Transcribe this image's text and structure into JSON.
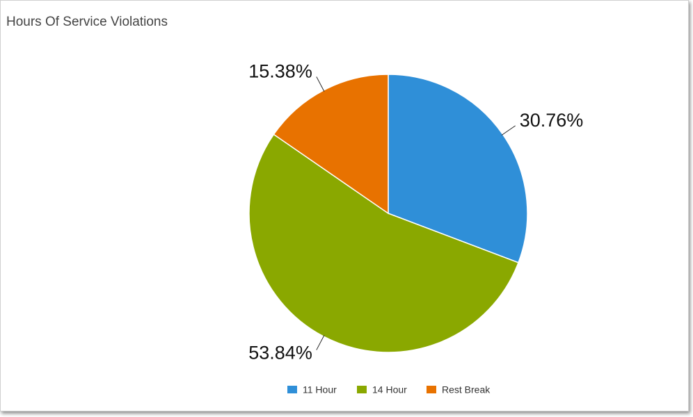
{
  "chart_data": {
    "type": "pie",
    "title": "Hours Of Service Violations",
    "categories": [
      "11 Hour",
      "14 Hour",
      "Rest Break"
    ],
    "values": [
      30.76,
      53.84,
      15.38
    ],
    "value_labels": [
      "30.76%",
      "53.84%",
      "15.38%"
    ],
    "colors": [
      "#2f8fd8",
      "#8aa800",
      "#e87200"
    ],
    "legend": "bottom"
  }
}
